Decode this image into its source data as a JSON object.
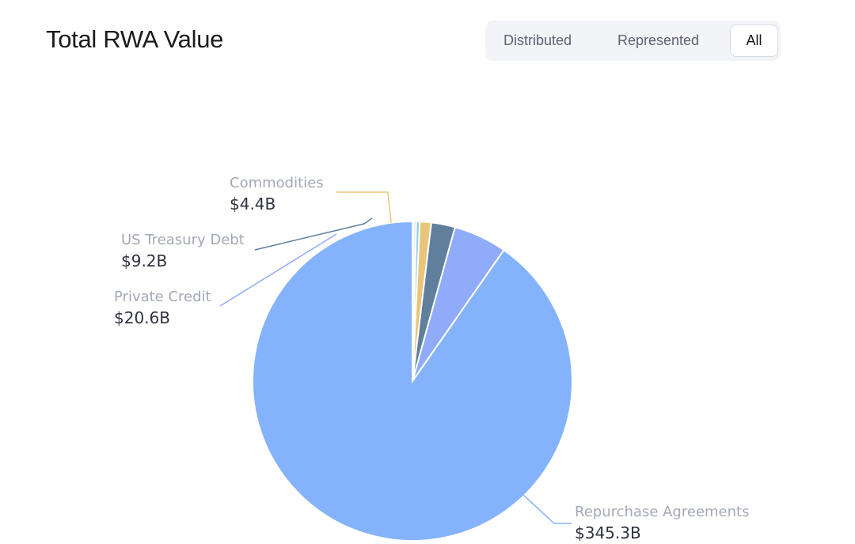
{
  "header": {
    "title": "Total RWA Value",
    "tabs": [
      {
        "label": "Distributed",
        "active": false
      },
      {
        "label": "Represented",
        "active": false
      },
      {
        "label": "All",
        "active": true
      }
    ]
  },
  "chart_data": {
    "type": "pie",
    "title": "Total RWA Value",
    "unit": "$B",
    "slices": [
      {
        "name": "Repurchase Agreements",
        "value": 345.3,
        "label": "$345.3B",
        "color": "#84b3fc",
        "labeled": true
      },
      {
        "name": "Private Credit",
        "value": 20.6,
        "label": "$20.6B",
        "color": "#8fabfa",
        "labeled": true
      },
      {
        "name": "US Treasury Debt",
        "value": 9.2,
        "label": "$9.2B",
        "color": "#5f7f9d",
        "labeled": true
      },
      {
        "name": "Commodities",
        "value": 4.4,
        "label": "$4.4B",
        "color": "#e8c57a",
        "labeled": true
      },
      {
        "name": "",
        "value": 1.4,
        "label": "",
        "color": "#8fd0ef",
        "labeled": false
      },
      {
        "name": "",
        "value": 0.9,
        "label": "",
        "color": "#c8d6f7",
        "labeled": false
      },
      {
        "name": "",
        "value": 0.5,
        "label": "",
        "color": "#f2b4c3",
        "labeled": false
      }
    ]
  }
}
